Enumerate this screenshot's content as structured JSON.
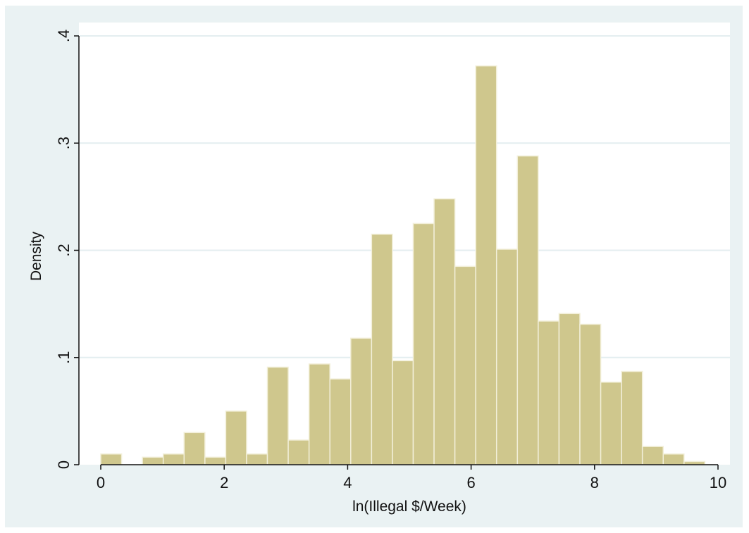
{
  "chart_data": {
    "type": "bar",
    "subtype": "histogram",
    "title": "",
    "xlabel": "ln(Illegal $/Week)",
    "ylabel": "Density",
    "xlim": [
      0,
      10
    ],
    "ylim": [
      0,
      0.4
    ],
    "grid": "horizontal",
    "bin_width": 0.3375,
    "bins": [
      {
        "x0": 0.0,
        "x1": 0.3375,
        "density": 0.01
      },
      {
        "x0": 0.3375,
        "x1": 0.675,
        "density": 0.0
      },
      {
        "x0": 0.675,
        "x1": 1.0125,
        "density": 0.007
      },
      {
        "x0": 1.0125,
        "x1": 1.35,
        "density": 0.01
      },
      {
        "x0": 1.35,
        "x1": 1.6875,
        "density": 0.03
      },
      {
        "x0": 1.6875,
        "x1": 2.025,
        "density": 0.007
      },
      {
        "x0": 2.025,
        "x1": 2.3625,
        "density": 0.05
      },
      {
        "x0": 2.3625,
        "x1": 2.7,
        "density": 0.01
      },
      {
        "x0": 2.7,
        "x1": 3.0375,
        "density": 0.091
      },
      {
        "x0": 3.0375,
        "x1": 3.375,
        "density": 0.023
      },
      {
        "x0": 3.375,
        "x1": 3.7125,
        "density": 0.094
      },
      {
        "x0": 3.7125,
        "x1": 4.05,
        "density": 0.08
      },
      {
        "x0": 4.05,
        "x1": 4.3875,
        "density": 0.118
      },
      {
        "x0": 4.3875,
        "x1": 4.725,
        "density": 0.215
      },
      {
        "x0": 4.725,
        "x1": 5.0625,
        "density": 0.097
      },
      {
        "x0": 5.0625,
        "x1": 5.4,
        "density": 0.225
      },
      {
        "x0": 5.4,
        "x1": 5.7375,
        "density": 0.248
      },
      {
        "x0": 5.7375,
        "x1": 6.075,
        "density": 0.185
      },
      {
        "x0": 6.075,
        "x1": 6.4125,
        "density": 0.372
      },
      {
        "x0": 6.4125,
        "x1": 6.75,
        "density": 0.201
      },
      {
        "x0": 6.75,
        "x1": 7.0875,
        "density": 0.288
      },
      {
        "x0": 7.0875,
        "x1": 7.425,
        "density": 0.134
      },
      {
        "x0": 7.425,
        "x1": 7.7625,
        "density": 0.141
      },
      {
        "x0": 7.7625,
        "x1": 8.1,
        "density": 0.131
      },
      {
        "x0": 8.1,
        "x1": 8.4375,
        "density": 0.077
      },
      {
        "x0": 8.4375,
        "x1": 8.775,
        "density": 0.087
      },
      {
        "x0": 8.775,
        "x1": 9.1125,
        "density": 0.017
      },
      {
        "x0": 9.1125,
        "x1": 9.45,
        "density": 0.01
      },
      {
        "x0": 9.45,
        "x1": 9.7875,
        "density": 0.003
      }
    ],
    "x_ticks": [
      {
        "value": 0,
        "label": "0"
      },
      {
        "value": 2,
        "label": "2"
      },
      {
        "value": 4,
        "label": "4"
      },
      {
        "value": 6,
        "label": "6"
      },
      {
        "value": 8,
        "label": "8"
      },
      {
        "value": 10,
        "label": "10"
      }
    ],
    "y_ticks": [
      {
        "value": 0,
        "label": "0"
      },
      {
        "value": 0.1,
        "label": ".1"
      },
      {
        "value": 0.2,
        "label": ".2"
      },
      {
        "value": 0.3,
        "label": ".3"
      },
      {
        "value": 0.4,
        "label": ".4"
      }
    ],
    "colors": {
      "background": "#eaf2f3",
      "plot_area": "#ffffff",
      "bar_fill": "#cfc78d",
      "bar_edge": "#f2efd9",
      "gridline": "#e4eef0",
      "axis": "#111111"
    }
  }
}
